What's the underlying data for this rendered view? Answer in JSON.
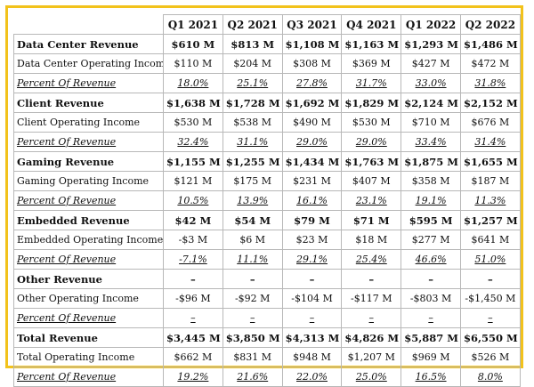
{
  "table": {
    "headers": [
      "",
      "Q1 2021",
      "Q2 2021",
      "Q3 2021",
      "Q4 2021",
      "Q1 2022",
      "Q2 2022"
    ],
    "rows": [
      {
        "style": "bold",
        "label": "Data Center Revenue",
        "values": [
          "$610 M",
          "$813 M",
          "$1,108 M",
          "$1,163 M",
          "$1,293 M",
          "$1,486 M"
        ]
      },
      {
        "style": "normal",
        "label": "Data Center Operating Income",
        "values": [
          "$110 M",
          "$204 M",
          "$308 M",
          "$369 M",
          "$427 M",
          "$472 M"
        ]
      },
      {
        "style": "pct",
        "label": "Percent Of Revenue",
        "values": [
          "18.0%",
          "25.1%",
          "27.8%",
          "31.7%",
          "33.0%",
          "31.8%"
        ]
      },
      {
        "style": "bold",
        "label": "Client Revenue",
        "values": [
          "$1,638 M",
          "$1,728 M",
          "$1,692 M",
          "$1,829 M",
          "$2,124 M",
          "$2,152 M"
        ]
      },
      {
        "style": "normal",
        "label": "Client Operating Income",
        "values": [
          "$530 M",
          "$538 M",
          "$490 M",
          "$530 M",
          "$710 M",
          "$676 M"
        ]
      },
      {
        "style": "pct",
        "label": "Percent Of Revenue",
        "values": [
          "32.4%",
          "31.1%",
          "29.0%",
          "29.0%",
          "33.4%",
          "31.4%"
        ]
      },
      {
        "style": "bold",
        "label": "Gaming Revenue",
        "values": [
          "$1,155 M",
          "$1,255 M",
          "$1,434 M",
          "$1,763 M",
          "$1,875 M",
          "$1,655 M"
        ]
      },
      {
        "style": "normal",
        "label": "Gaming Operating Income",
        "values": [
          "$121 M",
          "$175 M",
          "$231 M",
          "$407 M",
          "$358 M",
          "$187 M"
        ]
      },
      {
        "style": "pct",
        "label": "Percent Of Revenue",
        "values": [
          "10.5%",
          "13.9%",
          "16.1%",
          "23.1%",
          "19.1%",
          "11.3%"
        ]
      },
      {
        "style": "bold",
        "label": "Embedded Revenue",
        "values": [
          "$42 M",
          "$54 M",
          "$79 M",
          "$71 M",
          "$595 M",
          "$1,257 M"
        ]
      },
      {
        "style": "normal",
        "label": "Embedded Operating Income",
        "values": [
          "-$3 M",
          "$6 M",
          "$23 M",
          "$18 M",
          "$277 M",
          "$641 M"
        ]
      },
      {
        "style": "pct",
        "label": "Percent Of Revenue",
        "values": [
          "-7.1%",
          "11.1%",
          "29.1%",
          "25.4%",
          "46.6%",
          "51.0%"
        ]
      },
      {
        "style": "bold",
        "label": "Other Revenue",
        "values": [
          "–",
          "–",
          "–",
          "–",
          "–",
          "–"
        ]
      },
      {
        "style": "normal",
        "label": "Other Operating Income",
        "values": [
          "-$96 M",
          "-$92 M",
          "-$104 M",
          "-$117 M",
          "-$803 M",
          "-$1,450 M"
        ]
      },
      {
        "style": "pct",
        "label": "Percent Of Revenue",
        "values": [
          "–",
          "–",
          "–",
          "–",
          "–",
          "–"
        ]
      },
      {
        "style": "bold",
        "label": "Total Revenue",
        "values": [
          "$3,445 M",
          "$3,850 M",
          "$4,313 M",
          "$4,826 M",
          "$5,887 M",
          "$6,550 M"
        ]
      },
      {
        "style": "normal",
        "label": "Total Operating Income",
        "values": [
          "$662 M",
          "$831 M",
          "$948 M",
          "$1,207 M",
          "$969 M",
          "$526 M"
        ]
      },
      {
        "style": "pct",
        "label": "Percent Of Revenue",
        "values": [
          "19.2%",
          "21.6%",
          "22.0%",
          "25.0%",
          "16.5%",
          "8.0%"
        ]
      }
    ]
  },
  "colors": {
    "frame_border": "#f2c21b",
    "grid_line": "#b8b8b8",
    "text": "#111111"
  }
}
